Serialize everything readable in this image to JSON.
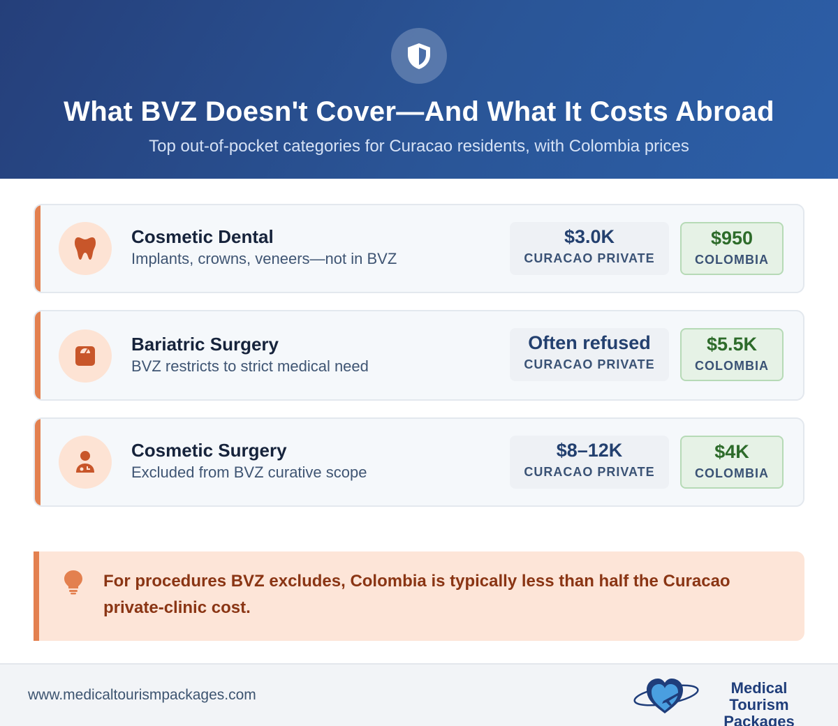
{
  "header": {
    "icon": "shield-icon",
    "title": "What BVZ Doesn't Cover—And What It Costs Abroad",
    "subtitle": "Top out-of-pocket categories for Curacao residents, with Colombia prices"
  },
  "cards": [
    {
      "icon": "tooth-icon",
      "title": "Cosmetic Dental",
      "description": "Implants, crowns, veneers—not in BVZ",
      "curacao_value": "$3.0K",
      "curacao_label": "CURACAO PRIVATE",
      "colombia_value": "$950",
      "colombia_label": "COLOMBIA"
    },
    {
      "icon": "scale-icon",
      "title": "Bariatric Surgery",
      "description": "BVZ restricts to strict medical need",
      "curacao_value": "Often refused",
      "curacao_label": "CURACAO PRIVATE",
      "colombia_value": "$5.5K",
      "colombia_label": "COLOMBIA"
    },
    {
      "icon": "doctor-icon",
      "title": "Cosmetic Surgery",
      "description": "Excluded from BVZ curative scope",
      "curacao_value": "$8–12K",
      "curacao_label": "CURACAO PRIVATE",
      "colombia_value": "$4K",
      "colombia_label": "COLOMBIA"
    }
  ],
  "callout": {
    "icon": "lightbulb-icon",
    "text": "For procedures BVZ excludes, Colombia is typically less than half the Curacao private-clinic cost."
  },
  "footer": {
    "url": "www.medicaltourismpackages.com",
    "brand_line1": "Medical Tourism",
    "brand_line2": "Packages"
  },
  "colors": {
    "header_bg": "#2a5597",
    "accent": "#e3804f",
    "colombia_text": "#2d6b2a",
    "callout_bg": "#fde5d8"
  }
}
